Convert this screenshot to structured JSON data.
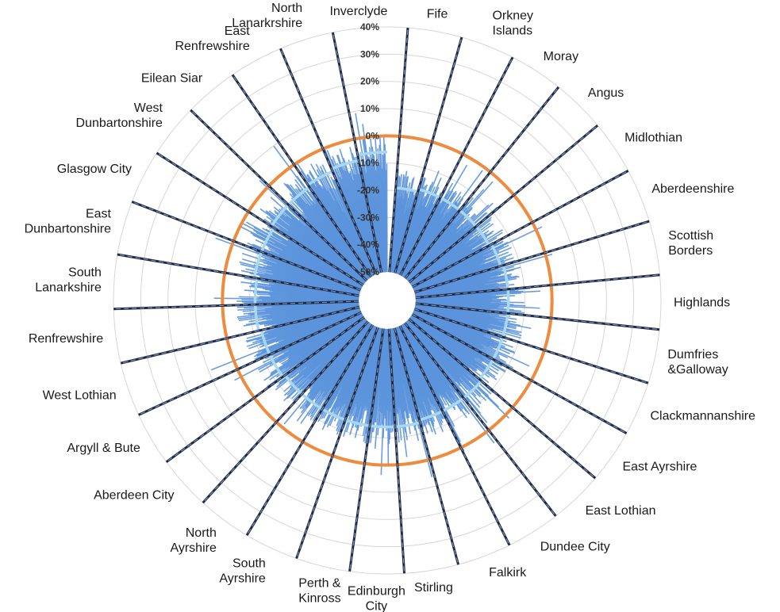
{
  "chart_data": {
    "type": "radar",
    "grid": true,
    "r_axis": {
      "range_percent": [
        -50,
        40
      ],
      "ticks": [
        "40%",
        "30%",
        "20%",
        "10%",
        "0%",
        "-10%",
        "-20%",
        "-30%",
        "-40%",
        "-50%"
      ],
      "tick_values": [
        40,
        30,
        20,
        10,
        0,
        -10,
        -20,
        -30,
        -40,
        -50
      ]
    },
    "reference_series": {
      "color": "#ED8B3F",
      "value": 0
    },
    "bar_series": {
      "color": "#5B93DC"
    },
    "mean_series": {
      "color": "#A8D8F0"
    },
    "divider_color": "#1F2A44",
    "councils": [
      {
        "label": "Fife",
        "mean": -19
      },
      {
        "label": "Orkney Islands",
        "mean": -18
      },
      {
        "label": "Moray",
        "mean": -18
      },
      {
        "label": "Angus",
        "mean": -18
      },
      {
        "label": "Midlothian",
        "mean": -18
      },
      {
        "label": "Aberdeenshire",
        "mean": -17
      },
      {
        "label": "Scottish Borders",
        "mean": -16
      },
      {
        "label": "Highlands",
        "mean": -16
      },
      {
        "label": "Dumfries &Galloway",
        "mean": -16
      },
      {
        "label": "Clackmannanshire",
        "mean": -16
      },
      {
        "label": "East Ayrshire",
        "mean": -16
      },
      {
        "label": "East Lothian",
        "mean": -15
      },
      {
        "label": "Dundee City",
        "mean": -15
      },
      {
        "label": "Falkirk",
        "mean": -15
      },
      {
        "label": "Stirling",
        "mean": -14
      },
      {
        "label": "Edinburgh City",
        "mean": -14
      },
      {
        "label": "Perth & Kinross",
        "mean": -14
      },
      {
        "label": "South Ayrshire",
        "mean": -14
      },
      {
        "label": "North Ayrshire",
        "mean": -14
      },
      {
        "label": "Aberdeen City",
        "mean": -14
      },
      {
        "label": "Argyll & Bute",
        "mean": -13
      },
      {
        "label": "West Lothian",
        "mean": -13
      },
      {
        "label": "Renfrewshire",
        "mean": -12
      },
      {
        "label": "South Lanarkshire",
        "mean": -12
      },
      {
        "label": "East Dunbartonshire",
        "mean": -11
      },
      {
        "label": "Glasgow City",
        "mean": -11
      },
      {
        "label": "West Dunbartonshire",
        "mean": -10
      },
      {
        "label": "Eilean Siar",
        "mean": -10
      },
      {
        "label": "East Renfrewshire",
        "mean": -9
      },
      {
        "label": "North Lanarkrshire",
        "mean": -8
      },
      {
        "label": "Inverclyde",
        "mean": -6
      }
    ]
  }
}
